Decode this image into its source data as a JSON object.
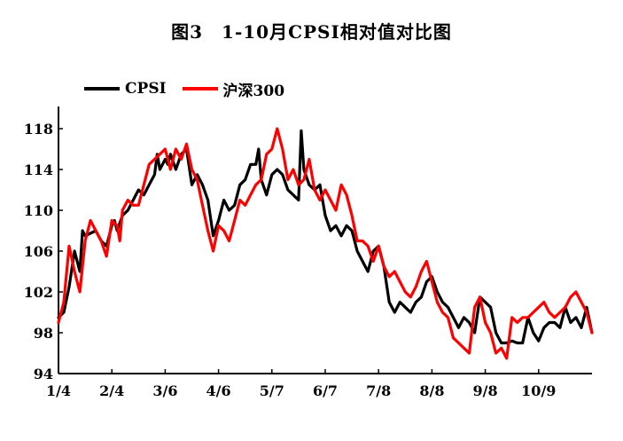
{
  "chart_data": {
    "type": "line",
    "title": "图3　1-10月CPSI相对值对比图",
    "xlabel": "",
    "ylabel": "",
    "ylim": [
      94,
      120
    ],
    "yticks": [
      94,
      98,
      102,
      106,
      110,
      114,
      118
    ],
    "x_tick_labels": [
      "1/4",
      "2/4",
      "3/6",
      "4/6",
      "5/7",
      "6/7",
      "7/8",
      "8/8",
      "9/8",
      "10/9"
    ],
    "grid": false,
    "legend_position": "top-left",
    "x_index_range": [
      0,
      100
    ],
    "series": [
      {
        "name": "CPSI",
        "color": "#000000",
        "points": [
          [
            0,
            99.5
          ],
          [
            1,
            100.0
          ],
          [
            2,
            102.5
          ],
          [
            3,
            106.0
          ],
          [
            4,
            104.0
          ],
          [
            4.5,
            108.0
          ],
          [
            5,
            107.5
          ],
          [
            7,
            108.0
          ],
          [
            8,
            107.0
          ],
          [
            9,
            106.5
          ],
          [
            10,
            108.5
          ],
          [
            10.5,
            109.0
          ],
          [
            11,
            108.0
          ],
          [
            12,
            109.5
          ],
          [
            13,
            110.0
          ],
          [
            14,
            111.0
          ],
          [
            15,
            112.0
          ],
          [
            16,
            111.5
          ],
          [
            17,
            112.5
          ],
          [
            18,
            113.5
          ],
          [
            18.5,
            115.5
          ],
          [
            19,
            114.0
          ],
          [
            20,
            115.0
          ],
          [
            20.5,
            114.5
          ],
          [
            21,
            115.5
          ],
          [
            22,
            114.0
          ],
          [
            23,
            115.5
          ],
          [
            24,
            116.0
          ],
          [
            25,
            112.5
          ],
          [
            26,
            113.5
          ],
          [
            27,
            112.5
          ],
          [
            28,
            111.0
          ],
          [
            29,
            107.5
          ],
          [
            30,
            109.0
          ],
          [
            31,
            111.0
          ],
          [
            32,
            110.0
          ],
          [
            33,
            110.5
          ],
          [
            34,
            112.5
          ],
          [
            35,
            113.0
          ],
          [
            36,
            114.5
          ],
          [
            37,
            114.5
          ],
          [
            37.5,
            116.0
          ],
          [
            38,
            113.0
          ],
          [
            39,
            111.5
          ],
          [
            40,
            113.5
          ],
          [
            41,
            114.0
          ],
          [
            42,
            113.5
          ],
          [
            43,
            112.0
          ],
          [
            44,
            111.5
          ],
          [
            45,
            111.0
          ],
          [
            45.5,
            117.8
          ],
          [
            46,
            114.0
          ],
          [
            47,
            112.5
          ],
          [
            48,
            112.0
          ],
          [
            49,
            112.5
          ],
          [
            50,
            109.5
          ],
          [
            51,
            108.0
          ],
          [
            52,
            108.5
          ],
          [
            53,
            107.5
          ],
          [
            54,
            108.5
          ],
          [
            55,
            108.0
          ],
          [
            56,
            106.0
          ],
          [
            57,
            105.0
          ],
          [
            58,
            104.0
          ],
          [
            59,
            106.0
          ],
          [
            60,
            106.5
          ],
          [
            61,
            104.5
          ],
          [
            62,
            101.0
          ],
          [
            63,
            100.0
          ],
          [
            64,
            101.0
          ],
          [
            65,
            100.5
          ],
          [
            66,
            100.0
          ],
          [
            67,
            101.0
          ],
          [
            68,
            101.5
          ],
          [
            69,
            103.0
          ],
          [
            70,
            103.5
          ],
          [
            71,
            102.0
          ],
          [
            72,
            101.0
          ],
          [
            73,
            100.5
          ],
          [
            74,
            99.5
          ],
          [
            75,
            98.5
          ],
          [
            76,
            99.5
          ],
          [
            77,
            99.0
          ],
          [
            78,
            98.0
          ],
          [
            79,
            101.5
          ],
          [
            80,
            101.0
          ],
          [
            81,
            100.5
          ],
          [
            82,
            98.0
          ],
          [
            83,
            97.0
          ],
          [
            84,
            97.0
          ],
          [
            85,
            97.2
          ],
          [
            86,
            97.0
          ],
          [
            87,
            97.0
          ],
          [
            88,
            99.5
          ],
          [
            89,
            98.0
          ],
          [
            90,
            97.2
          ],
          [
            91,
            98.5
          ],
          [
            92,
            99.0
          ],
          [
            93,
            99.0
          ],
          [
            94,
            98.5
          ],
          [
            95,
            100.5
          ],
          [
            96,
            99.0
          ],
          [
            97,
            99.5
          ],
          [
            98,
            98.5
          ],
          [
            99,
            100.5
          ],
          [
            100,
            98.0
          ]
        ]
      },
      {
        "name": "沪深300",
        "color": "#ff0000",
        "points": [
          [
            0,
            99.0
          ],
          [
            1,
            101.0
          ],
          [
            2,
            106.5
          ],
          [
            3,
            104.0
          ],
          [
            4,
            102.0
          ],
          [
            5,
            107.0
          ],
          [
            6,
            109.0
          ],
          [
            7,
            108.0
          ],
          [
            8,
            107.0
          ],
          [
            9,
            105.5
          ],
          [
            10,
            109.0
          ],
          [
            11,
            108.5
          ],
          [
            11.5,
            107.0
          ],
          [
            12,
            110.0
          ],
          [
            13,
            111.0
          ],
          [
            14,
            110.5
          ],
          [
            15,
            110.5
          ],
          [
            16,
            112.5
          ],
          [
            17,
            114.5
          ],
          [
            18,
            115.0
          ],
          [
            19,
            115.5
          ],
          [
            20,
            116.0
          ],
          [
            21,
            114.0
          ],
          [
            22,
            116.0
          ],
          [
            23,
            115.0
          ],
          [
            24,
            116.5
          ],
          [
            25,
            114.0
          ],
          [
            26,
            113.0
          ],
          [
            27,
            110.5
          ],
          [
            28,
            108.0
          ],
          [
            29,
            106.0
          ],
          [
            30,
            108.5
          ],
          [
            31,
            108.0
          ],
          [
            32,
            107.0
          ],
          [
            33,
            109.0
          ],
          [
            34,
            111.0
          ],
          [
            35,
            110.5
          ],
          [
            36,
            111.5
          ],
          [
            37,
            112.5
          ],
          [
            38,
            113.0
          ],
          [
            39,
            115.5
          ],
          [
            40,
            116.0
          ],
          [
            41,
            118.0
          ],
          [
            42,
            116.0
          ],
          [
            43,
            113.0
          ],
          [
            44,
            114.0
          ],
          [
            45,
            112.5
          ],
          [
            46,
            113.0
          ],
          [
            47,
            115.0
          ],
          [
            48,
            112.0
          ],
          [
            49,
            111.0
          ],
          [
            50,
            112.0
          ],
          [
            51,
            111.0
          ],
          [
            52,
            110.0
          ],
          [
            53,
            112.5
          ],
          [
            54,
            111.5
          ],
          [
            55,
            109.5
          ],
          [
            56,
            107.0
          ],
          [
            57,
            107.0
          ],
          [
            58,
            106.5
          ],
          [
            59,
            105.0
          ],
          [
            60,
            106.5
          ],
          [
            61,
            104.5
          ],
          [
            62,
            103.5
          ],
          [
            63,
            104.0
          ],
          [
            64,
            103.0
          ],
          [
            65,
            102.0
          ],
          [
            66,
            101.5
          ],
          [
            67,
            102.5
          ],
          [
            68,
            104.0
          ],
          [
            69,
            105.0
          ],
          [
            70,
            103.0
          ],
          [
            71,
            101.0
          ],
          [
            72,
            100.0
          ],
          [
            73,
            99.5
          ],
          [
            74,
            97.5
          ],
          [
            75,
            97.0
          ],
          [
            76,
            96.5
          ],
          [
            77,
            96.0
          ],
          [
            78,
            100.5
          ],
          [
            79,
            101.5
          ],
          [
            80,
            99.0
          ],
          [
            81,
            98.0
          ],
          [
            82,
            96.0
          ],
          [
            83,
            96.5
          ],
          [
            84,
            95.5
          ],
          [
            85,
            99.5
          ],
          [
            86,
            99.0
          ],
          [
            87,
            99.5
          ],
          [
            88,
            99.5
          ],
          [
            89,
            100.0
          ],
          [
            90,
            100.5
          ],
          [
            91,
            101.0
          ],
          [
            92,
            100.0
          ],
          [
            93,
            99.5
          ],
          [
            94,
            100.0
          ],
          [
            95,
            100.5
          ],
          [
            96,
            101.5
          ],
          [
            97,
            102.0
          ],
          [
            98,
            101.0
          ],
          [
            99,
            100.0
          ],
          [
            100,
            98.0
          ]
        ]
      }
    ]
  }
}
